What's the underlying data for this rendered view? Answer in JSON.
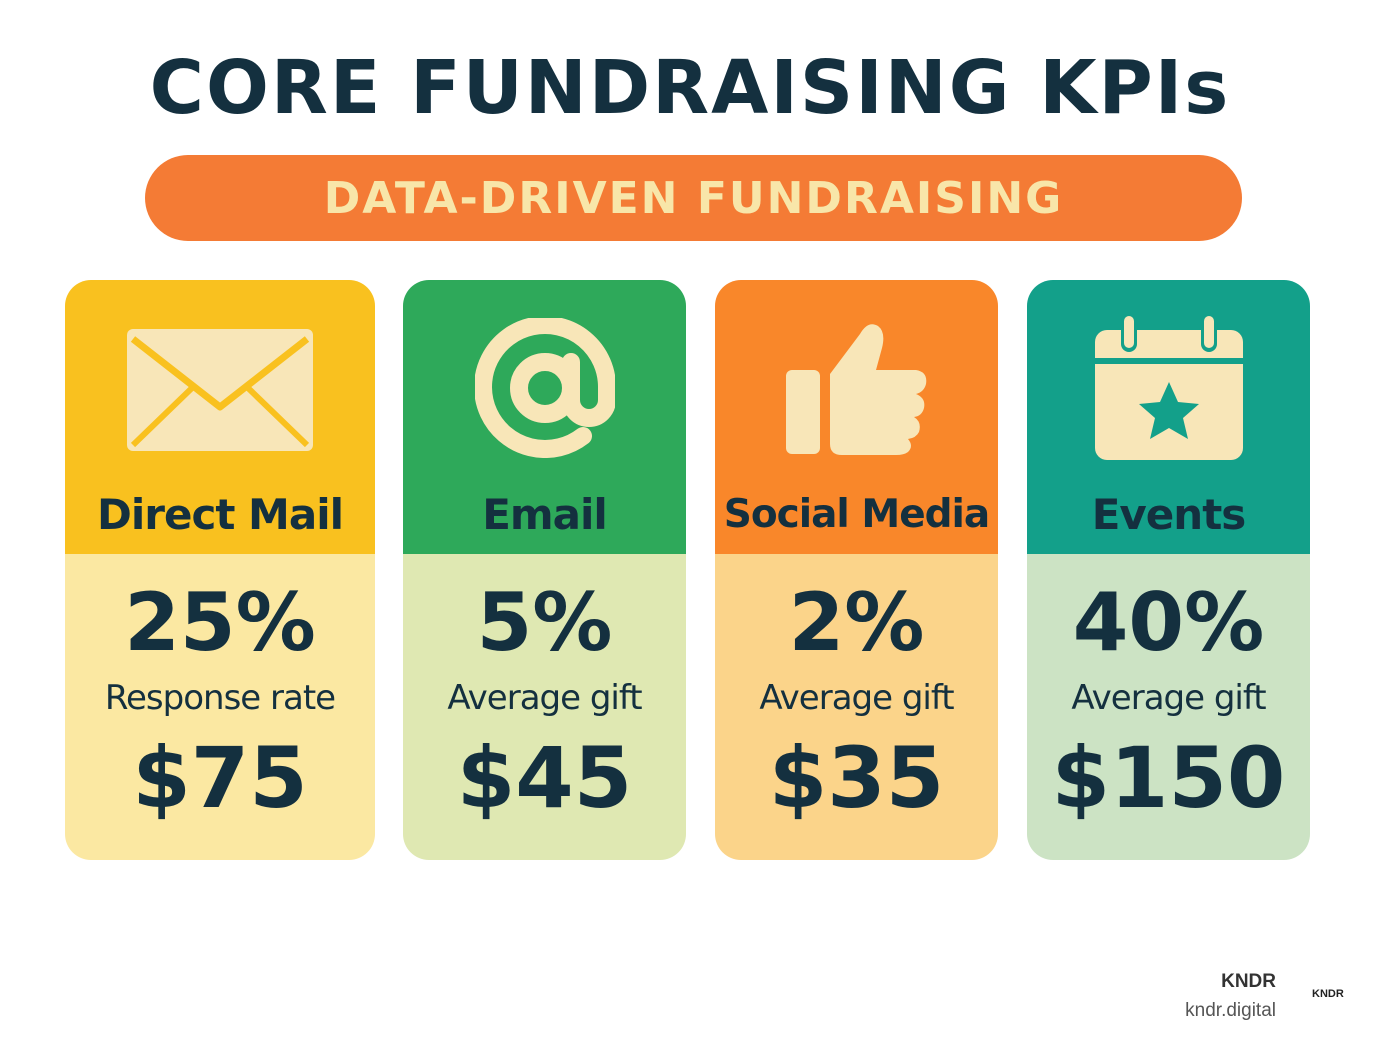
{
  "header": {
    "title": "CORE FUNDRAISING KPIs",
    "subtitle": "DATA-DRIVEN FUNDRAISING"
  },
  "colors": {
    "title": "#14303f",
    "banner": "#f47b35",
    "banner_text": "#f8e6a9",
    "icon": "#f8e6b8"
  },
  "cards": [
    {
      "label": "Direct Mail",
      "icon": "envelope-icon",
      "percent": "25%",
      "metric": "Response rate",
      "amount": "$75",
      "top_color": "#f9c11f",
      "bottom_color": "#fbe8a2"
    },
    {
      "label": "Email",
      "icon": "at-sign-icon",
      "percent": "5%",
      "metric": "Average gift",
      "amount": "$45",
      "top_color": "#2ea95a",
      "bottom_color": "#dfe8b2"
    },
    {
      "label": "Social Media",
      "icon": "thumbs-up-icon",
      "percent": "2%",
      "metric": "Average gift",
      "amount": "$35",
      "top_color": "#f9872a",
      "bottom_color": "#fbd48a"
    },
    {
      "label": "Events",
      "icon": "calendar-star-icon",
      "percent": "40%",
      "metric": "Average gift",
      "amount": "$150",
      "top_color": "#13a08a",
      "bottom_color": "#cce3c4"
    }
  ],
  "footer": {
    "brand": "KNDR",
    "url": "kndr.digital",
    "logo": "KNDR"
  }
}
